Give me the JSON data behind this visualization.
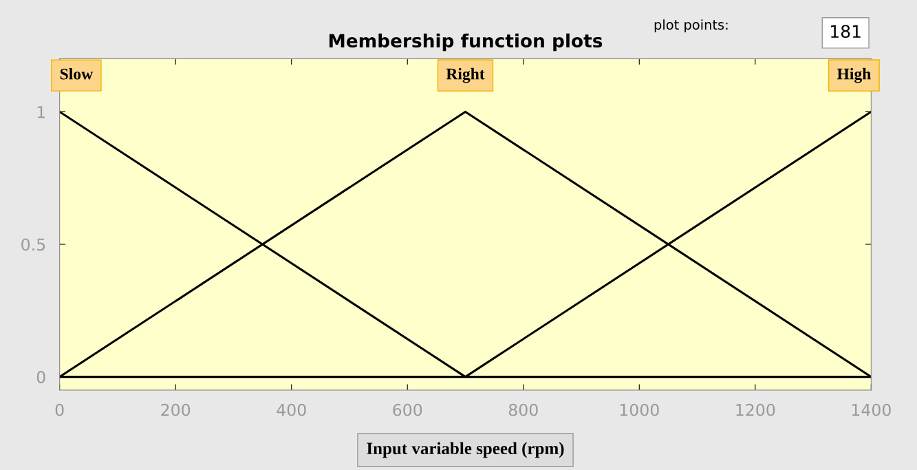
{
  "chart_data": {
    "type": "line",
    "title": "Membership function plots",
    "xlabel": "Input variable speed (rpm)",
    "annotations": [
      "plot points:",
      "181"
    ],
    "series": [
      {
        "name": "Slow",
        "color": "#000000",
        "x": [
          0,
          700,
          1400
        ],
        "values": [
          1,
          0,
          0
        ]
      },
      {
        "name": "Right",
        "color": "#000000",
        "x": [
          0,
          700,
          1400
        ],
        "values": [
          0,
          1,
          0
        ]
      },
      {
        "name": "High",
        "color": "#000000",
        "x": [
          0,
          700,
          1400
        ],
        "values": [
          0,
          0,
          1
        ]
      }
    ],
    "xlim": [
      0,
      1400
    ],
    "xticks": [
      0,
      200,
      400,
      600,
      800,
      1000,
      1200,
      1400
    ],
    "ylim": [
      -0.05,
      1.2
    ],
    "yticks": [
      0,
      0.5,
      1
    ],
    "grid": false,
    "legend": "top",
    "line_style": "solid",
    "marker": "none"
  }
}
